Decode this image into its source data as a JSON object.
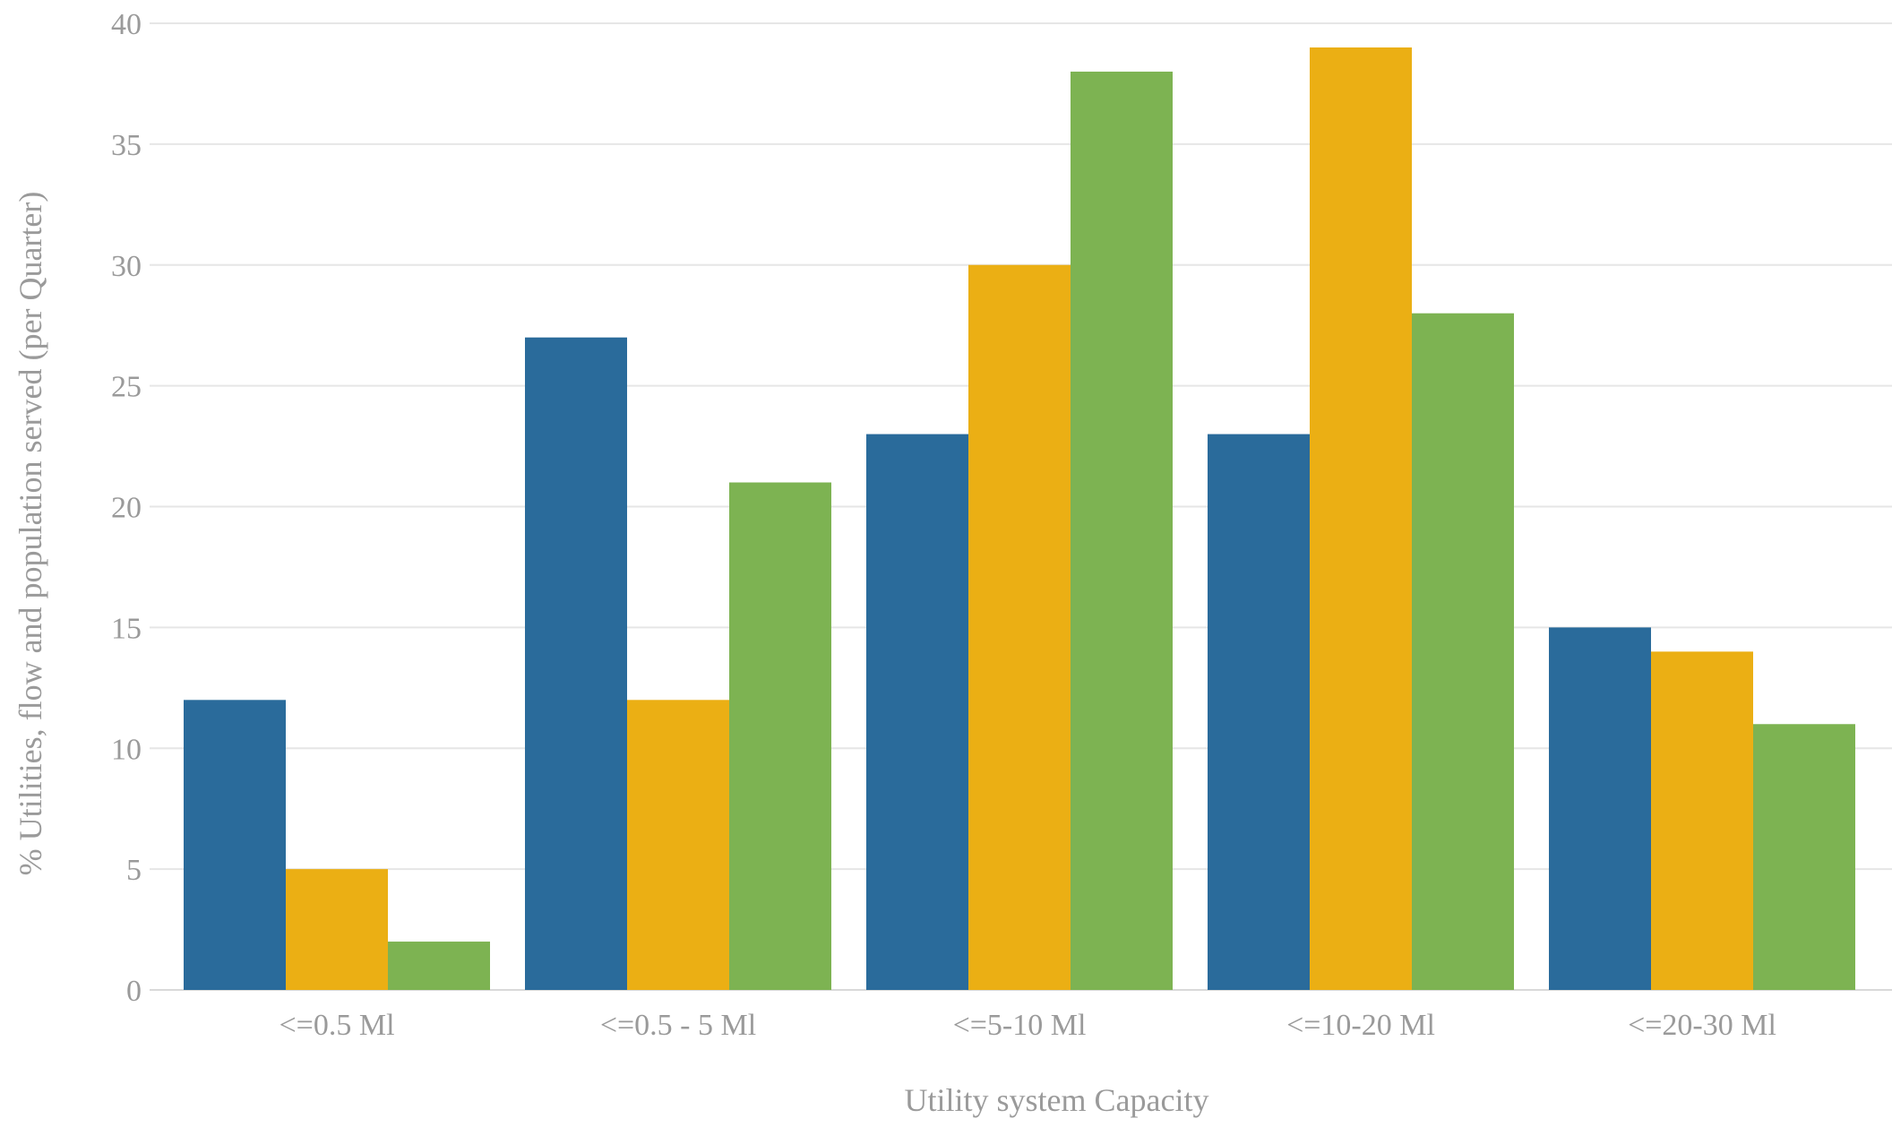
{
  "chart_data": {
    "type": "bar",
    "categories": [
      "<=0.5 Ml",
      "<=0.5 - 5 Ml",
      "<=5-10 Ml",
      "<=10-20 Ml",
      "<=20-30 Ml"
    ],
    "series": [
      {
        "values": [
          12,
          27,
          23,
          23,
          15
        ],
        "color": "#2a6b9b"
      },
      {
        "values": [
          5,
          12,
          30,
          39,
          14
        ],
        "color": "#ebaf14"
      },
      {
        "values": [
          2,
          21,
          38,
          28,
          11
        ],
        "color": "#7db352"
      }
    ],
    "title": "",
    "xlabel": "Utility system Capacity",
    "ylabel": "% Utilities, flow and population served (per Quarter)",
    "ylim": [
      0,
      40
    ],
    "yticks": [
      0,
      5,
      10,
      15,
      20,
      25,
      30,
      35,
      40
    ],
    "grid": true,
    "legend": "none"
  }
}
